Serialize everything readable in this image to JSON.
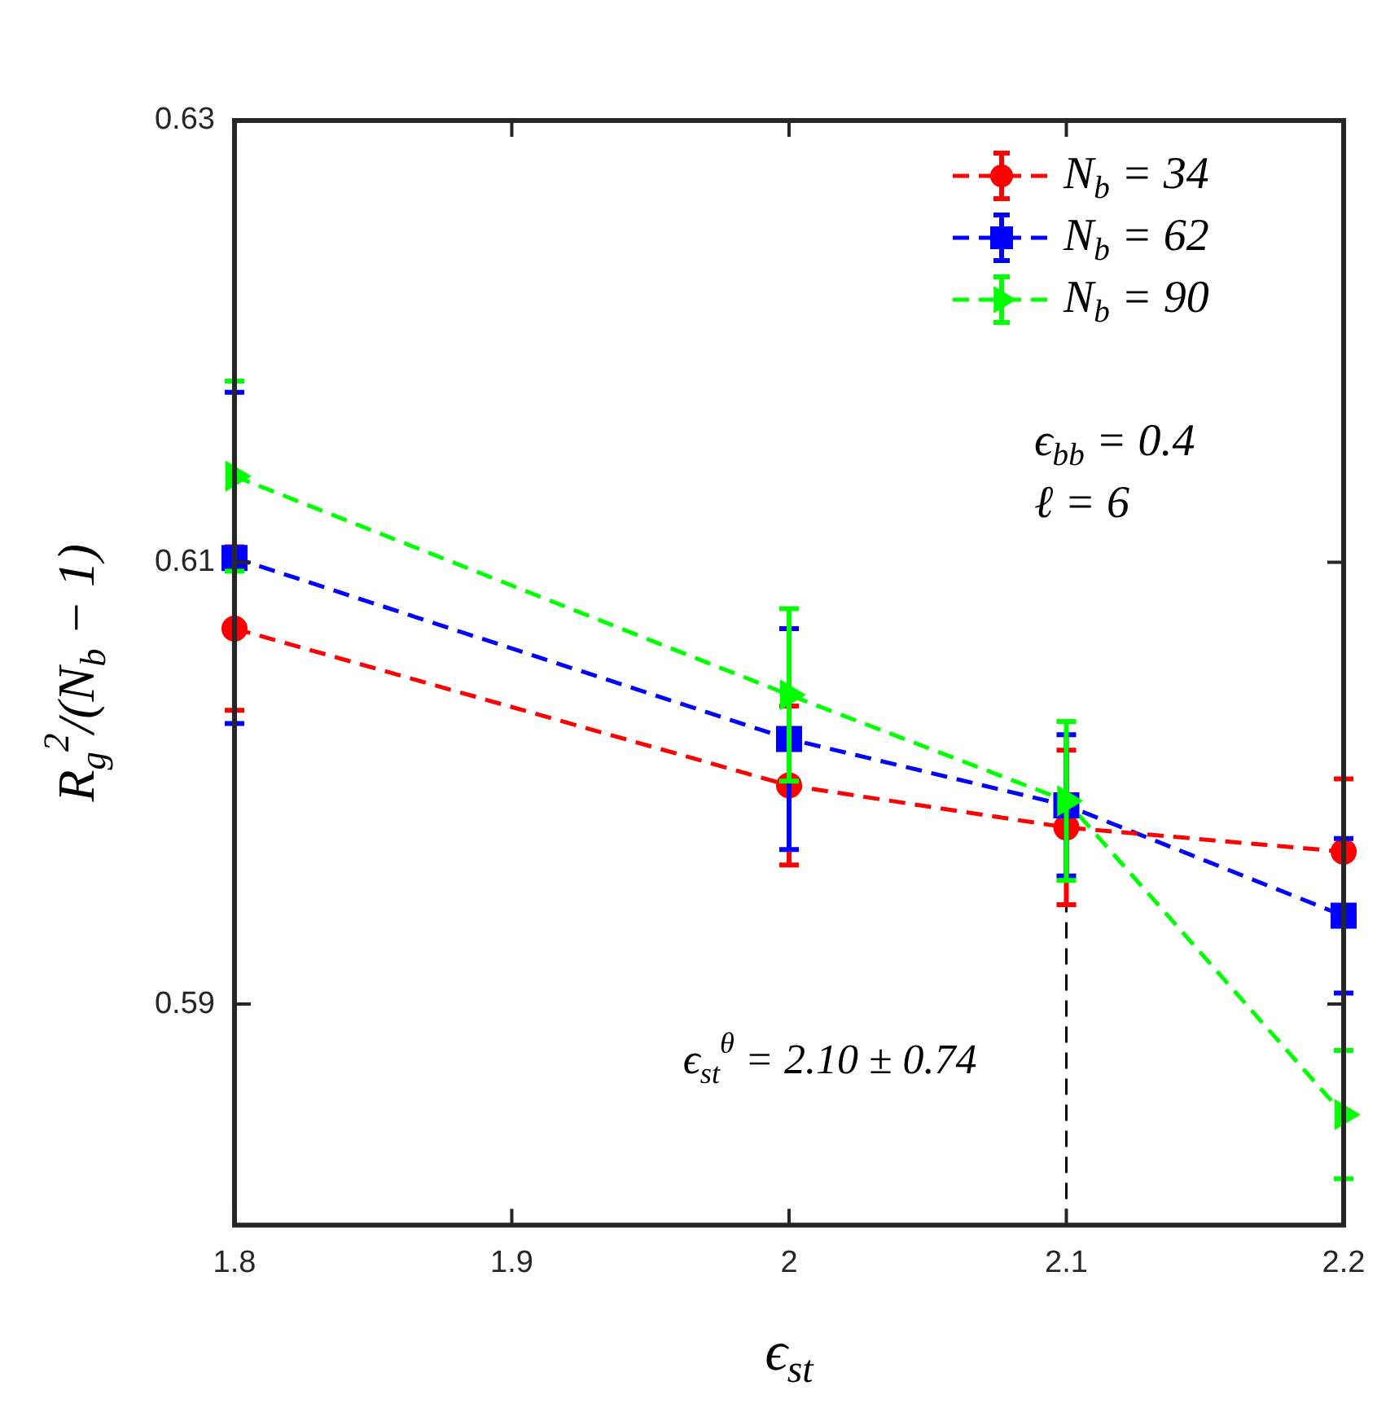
{
  "chart_data": {
    "type": "line",
    "xlabel": "ϵ$_{st}$",
    "ylabel": "R$_{g}$$^{2}$/(N$_{b}$ − 1)",
    "x": [
      1.8,
      2.0,
      2.1,
      2.2
    ],
    "xlim": [
      1.8,
      2.2
    ],
    "xticks": [
      1.8,
      1.9,
      2,
      2.1,
      2.2
    ],
    "ylim": [
      0.58,
      0.63
    ],
    "yticks": [
      0.59,
      0.61,
      0.63
    ],
    "grid": false,
    "legend": "top right",
    "line_style": "dashed",
    "series": [
      {
        "name": "N$_{b}$ = 34",
        "color": "#ff0000",
        "marker": "circle",
        "values": [
          0.607,
          0.5999,
          0.598,
          0.5969
        ],
        "errors": [
          0.0037,
          0.0036,
          0.0035,
          0.0033
        ]
      },
      {
        "name": "N$_{b}$ = 62",
        "color": "#0000ff",
        "marker": "square",
        "values": [
          0.6102,
          0.602,
          0.599,
          0.594
        ],
        "errors": [
          0.0075,
          0.005,
          0.0032,
          0.0035
        ]
      },
      {
        "name": "N$_{b}$ = 90",
        "color": "#00ff00",
        "marker": "triangle",
        "values": [
          0.6139,
          0.604,
          0.5992,
          0.585
        ],
        "errors": [
          0.0043,
          0.0039,
          0.0036,
          0.0029
        ]
      }
    ],
    "ref_lines": [
      {
        "axis": "x",
        "value": 2.1,
        "label": "ϵ$_{st}$$^{θ}$ = 2.10 ± 0.74",
        "color": "#000000",
        "line_style": "dashed"
      }
    ],
    "annotations": [
      "ϵ$_{bb}$ = 0.4",
      "ℓ = 6"
    ]
  }
}
